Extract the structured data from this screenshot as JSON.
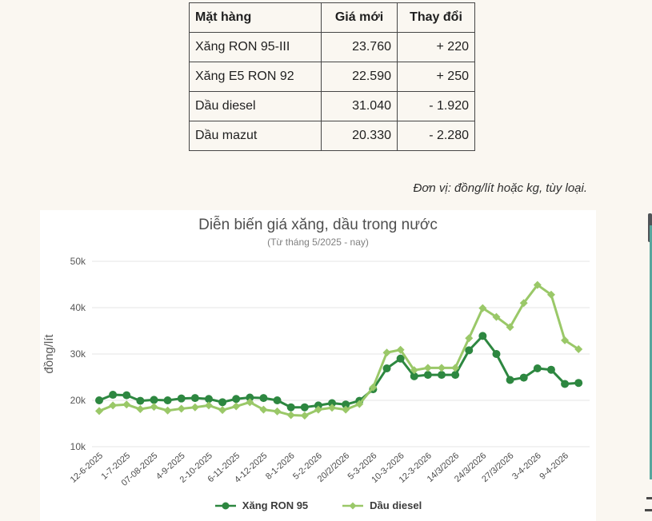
{
  "price_table": {
    "headers": {
      "item": "Mặt hàng",
      "price": "Giá mới",
      "change": "Thay đổi"
    },
    "rows": [
      {
        "item": "Xăng RON 95-III",
        "price": "23.760",
        "change": "+ 220"
      },
      {
        "item": "Xăng E5 RON 92",
        "price": "22.590",
        "change": "+ 250"
      },
      {
        "item": "Dầu diesel",
        "price": "31.040",
        "change": "- 1.920"
      },
      {
        "item": "Dầu mazut",
        "price": "20.330",
        "change": "- 2.280"
      }
    ]
  },
  "unit_note": "Đơn vị: đồng/lít hoặc kg, tùy loại.",
  "chart_data": {
    "type": "line",
    "title": "Diễn biến giá xăng, dầu trong nước",
    "subtitle": "(Từ tháng 5/2025 - nay)",
    "ylabel": "đồng/lít",
    "xlabel": "",
    "ylim": [
      10000,
      50000
    ],
    "y_ticks": [
      "10k",
      "20k",
      "30k",
      "40k",
      "50k"
    ],
    "grid": true,
    "legend_position": "bottom",
    "x_tick_labels": [
      "12-6-2025",
      "1-7-2025",
      "07-08-2025",
      "4-9-2025",
      "2-10-2025",
      "6-11-2025",
      "4-12-2025",
      "8-1-2026",
      "5-2-2026",
      "20/2/2026",
      "5-3-2026",
      "10-3-2026",
      "12-3-2026",
      "14/3/2026",
      "24/3/2026",
      "27/3/2026",
      "3-4-2026",
      "9-4-2026"
    ],
    "x_labels_every": 2,
    "series": [
      {
        "name": "Xăng RON 95",
        "color": "#2d8740",
        "marker": "circle",
        "values": [
          20000,
          21200,
          21100,
          19900,
          20100,
          20000,
          20400,
          20500,
          20300,
          19600,
          20300,
          20600,
          20500,
          20000,
          18500,
          18500,
          18900,
          19400,
          19100,
          19900,
          22400,
          26900,
          29000,
          25200,
          25500,
          25500,
          25500,
          30800,
          33900,
          30000,
          24400,
          24900,
          26900,
          26600,
          23540,
          23760
        ]
      },
      {
        "name": "Dầu diesel",
        "color": "#9ac868",
        "marker": "diamond",
        "values": [
          17700,
          18900,
          19100,
          18100,
          18600,
          17800,
          18200,
          18500,
          18900,
          17900,
          18700,
          19600,
          18000,
          17600,
          16800,
          16700,
          18000,
          18400,
          18000,
          19200,
          22800,
          30300,
          30900,
          26500,
          27000,
          27000,
          27000,
          33400,
          39900,
          38000,
          35800,
          41000,
          44900,
          42800,
          32960,
          31040
        ]
      }
    ],
    "grid_color": "#e4e4e4",
    "tick_color": "#565656"
  }
}
